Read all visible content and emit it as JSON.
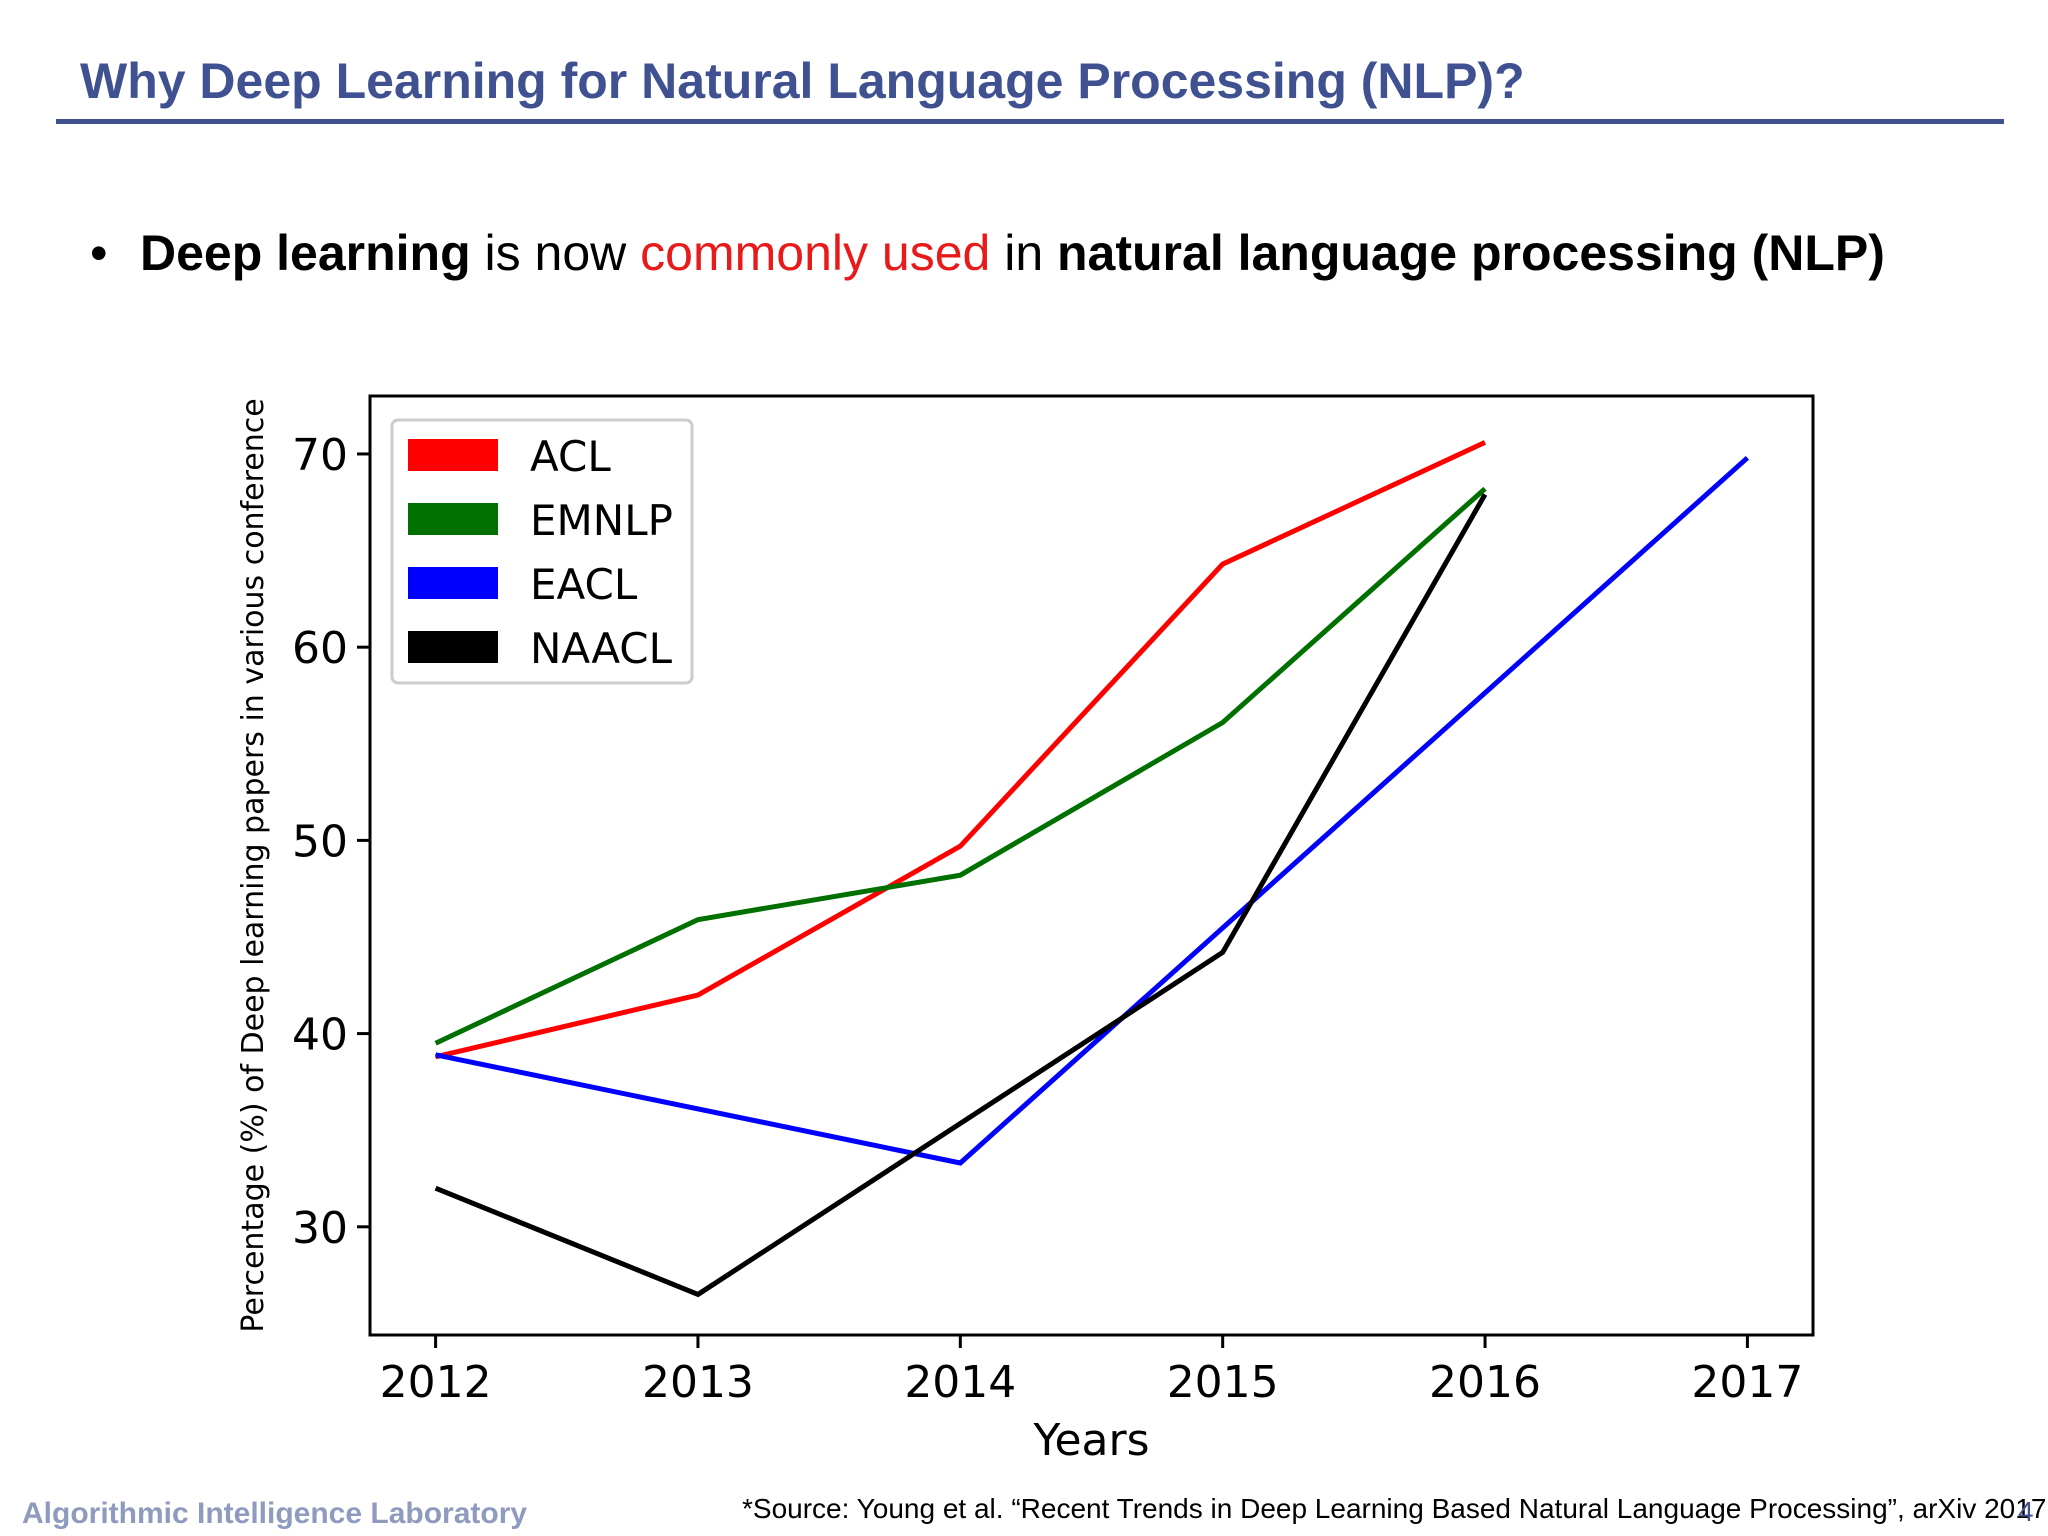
{
  "slide": {
    "title": "Why Deep Learning for Natural Language Processing (NLP)?",
    "bullet": {
      "marker": "•",
      "part1": "Deep learning",
      "part2": " is now ",
      "part3": "commonly used",
      "part4": " in ",
      "part5": "natural language processing (NLP)"
    },
    "footer_left": "Algorithmic Intelligence Laboratory",
    "source": "*Source: Young et al. “Recent Trends in Deep Learning Based Natural Language Processing”, arXiv 2017",
    "page_number": "4",
    "colors": {
      "title": "#3f5190",
      "highlight": "#e81a1a",
      "footer": "#8e9bbf"
    }
  },
  "chart_data": {
    "type": "line",
    "xlabel": "Years",
    "ylabel": "Percentage (%) of Deep learning papers in various conference",
    "xlim": [
      2011.75,
      2017.25
    ],
    "ylim": [
      24.4,
      73
    ],
    "xticks": [
      2012,
      2013,
      2014,
      2015,
      2016,
      2017
    ],
    "yticks": [
      30,
      40,
      50,
      60,
      70
    ],
    "legend_position": "top-left",
    "grid": false,
    "series": [
      {
        "name": "ACL",
        "color": "#ff0000",
        "x": [
          2012,
          2013,
          2014,
          2015,
          2016
        ],
        "y": [
          38.8,
          42,
          49.7,
          64.3,
          70.6
        ]
      },
      {
        "name": "EMNLP",
        "color": "#007000",
        "x": [
          2012,
          2013,
          2014,
          2015,
          2016
        ],
        "y": [
          39.5,
          45.9,
          48.2,
          56.1,
          68.2
        ]
      },
      {
        "name": "EACL",
        "color": "#0000ff",
        "x": [
          2012,
          2014,
          2017
        ],
        "y": [
          38.9,
          33.3,
          69.8
        ]
      },
      {
        "name": "NAACL",
        "color": "#000000",
        "x": [
          2012,
          2013,
          2015,
          2016
        ],
        "y": [
          32,
          26.5,
          44.2,
          67.9
        ]
      }
    ]
  }
}
